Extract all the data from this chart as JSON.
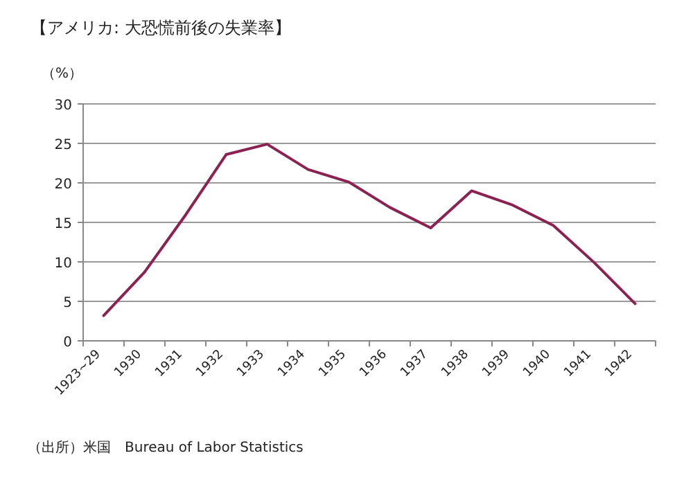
{
  "chart_data": {
    "type": "line",
    "title": "【アメリカ: 大恐慌前後の失業率】",
    "ylabel": "（%）",
    "categories": [
      "1923~29",
      "1930",
      "1931",
      "1932",
      "1933",
      "1934",
      "1935",
      "1936",
      "1937",
      "1938",
      "1939",
      "1940",
      "1941",
      "1942"
    ],
    "series": [
      {
        "color": "#8b2252",
        "values": [
          3.2,
          8.7,
          15.9,
          23.6,
          24.9,
          21.7,
          20.1,
          16.9,
          14.3,
          19.0,
          17.2,
          14.6,
          9.9,
          4.7
        ]
      }
    ],
    "ylim": [
      0,
      30
    ],
    "yticks": [
      0,
      5,
      10,
      15,
      20,
      25,
      30
    ],
    "grid": "y",
    "marker": "none",
    "line_style": "solid",
    "annotations": [
      "（出所）米国　Bureau of Labor Statistics"
    ]
  }
}
